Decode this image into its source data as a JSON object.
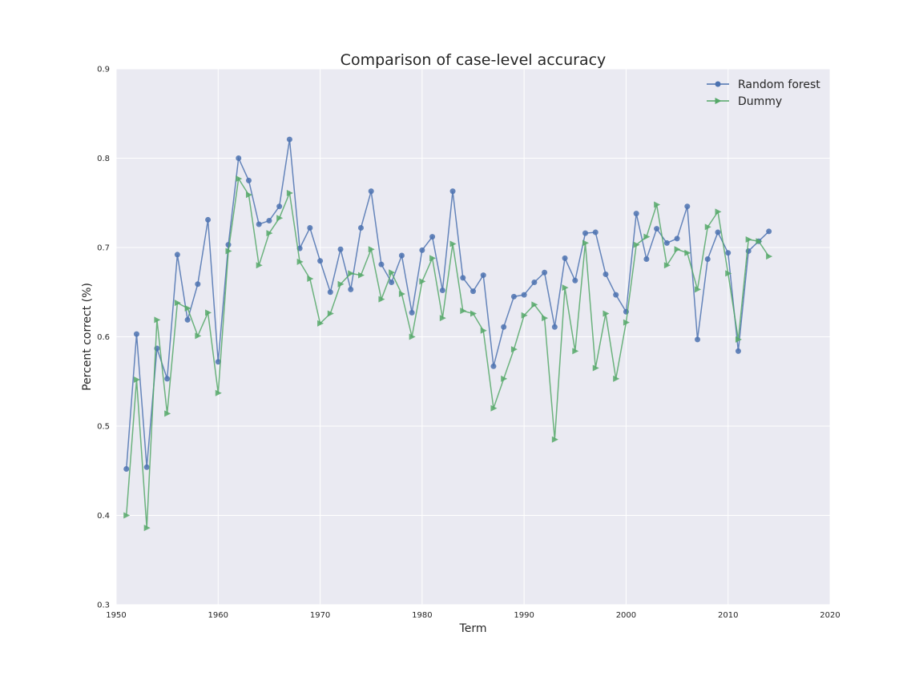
{
  "chart_data": {
    "type": "line",
    "title": "Comparison of case-level accuracy",
    "xlabel": "Term",
    "ylabel": "Percent correct (%)",
    "xlim": [
      1950,
      2020
    ],
    "ylim": [
      0.3,
      0.9
    ],
    "xticks": [
      1950,
      1960,
      1970,
      1980,
      1990,
      2000,
      2010,
      2020
    ],
    "yticks": [
      0.3,
      0.4,
      0.5,
      0.6,
      0.7,
      0.8,
      0.9
    ],
    "grid": true,
    "legend_position": "top-right",
    "background": "#eaeaf2",
    "x": [
      1951,
      1952,
      1953,
      1954,
      1955,
      1956,
      1957,
      1958,
      1959,
      1960,
      1961,
      1962,
      1963,
      1964,
      1965,
      1966,
      1967,
      1968,
      1969,
      1970,
      1971,
      1972,
      1973,
      1974,
      1975,
      1976,
      1977,
      1978,
      1979,
      1980,
      1981,
      1982,
      1983,
      1984,
      1985,
      1986,
      1987,
      1988,
      1989,
      1990,
      1991,
      1992,
      1993,
      1994,
      1995,
      1996,
      1997,
      1998,
      1999,
      2000,
      2001,
      2002,
      2003,
      2004,
      2005,
      2006,
      2007,
      2008,
      2009,
      2010,
      2011,
      2012,
      2013,
      2014
    ],
    "series": [
      {
        "name": "Random forest",
        "color": "#4c72b0",
        "marker": "circle",
        "values": [
          0.452,
          0.603,
          0.454,
          0.587,
          0.553,
          0.692,
          0.619,
          0.659,
          0.731,
          0.572,
          0.703,
          0.8,
          0.775,
          0.726,
          0.73,
          0.746,
          0.821,
          0.699,
          0.722,
          0.685,
          0.65,
          0.698,
          0.653,
          0.722,
          0.763,
          0.681,
          0.661,
          0.691,
          0.627,
          0.697,
          0.712,
          0.652,
          0.763,
          0.666,
          0.651,
          0.669,
          0.567,
          0.611,
          0.645,
          0.647,
          0.661,
          0.672,
          0.611,
          0.688,
          0.663,
          0.716,
          0.717,
          0.67,
          0.647,
          0.628,
          0.738,
          0.687,
          0.721,
          0.705,
          0.71,
          0.746,
          0.597,
          0.687,
          0.717,
          0.694,
          0.584,
          0.696,
          0.707,
          0.718
        ]
      },
      {
        "name": "Dummy",
        "color": "#55a868",
        "marker": "triangle-right",
        "values": [
          0.4,
          0.552,
          0.386,
          0.619,
          0.514,
          0.638,
          0.632,
          0.601,
          0.627,
          0.537,
          0.696,
          0.777,
          0.759,
          0.68,
          0.716,
          0.733,
          0.761,
          0.684,
          0.665,
          0.615,
          0.626,
          0.659,
          0.671,
          0.669,
          0.698,
          0.642,
          0.672,
          0.648,
          0.6,
          0.662,
          0.688,
          0.621,
          0.704,
          0.629,
          0.626,
          0.607,
          0.52,
          0.553,
          0.586,
          0.624,
          0.636,
          0.621,
          0.485,
          0.655,
          0.584,
          0.705,
          0.565,
          0.626,
          0.553,
          0.616,
          0.703,
          0.712,
          0.748,
          0.68,
          0.698,
          0.694,
          0.653,
          0.723,
          0.74,
          0.671,
          0.597,
          0.709,
          0.707,
          0.69
        ]
      }
    ]
  }
}
